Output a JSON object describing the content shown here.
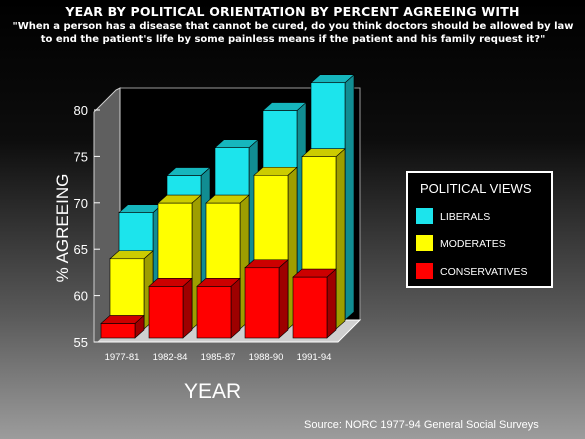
{
  "chart_data": {
    "type": "bar",
    "title": "YEAR BY POLITICAL ORIENTATION BY PERCENT AGREEING WITH",
    "subtitle": "\"When a person has a disease that cannot be cured, do you think doctors should be allowed by law to end the patient's life by some painless means if the patient and his family request it?\"",
    "xlabel": "YEAR",
    "ylabel": "% AGREEING",
    "ylim": [
      55,
      80
    ],
    "yticks": [
      55,
      60,
      65,
      70,
      75,
      80
    ],
    "grid": false,
    "bar_style": "3d-stacked-depth",
    "categories": [
      "1977-81",
      "1982-84",
      "1985-87",
      "1988-90",
      "1991-94"
    ],
    "series": [
      {
        "name": "LIBERALS",
        "color": "#1ce4ec",
        "values": [
          67,
          71,
          74,
          78,
          81
        ]
      },
      {
        "name": "MODERATES",
        "color": "#ffff00",
        "values": [
          63,
          69,
          69,
          72,
          74
        ]
      },
      {
        "name": "CONSERVATIVES",
        "color": "#ff0000",
        "values": [
          57,
          61,
          61,
          63,
          62
        ]
      }
    ],
    "legend": {
      "title": "POLITICAL VIEWS",
      "placement": "right"
    },
    "source": "Source: NORC 1977-94 General Social Surveys"
  }
}
